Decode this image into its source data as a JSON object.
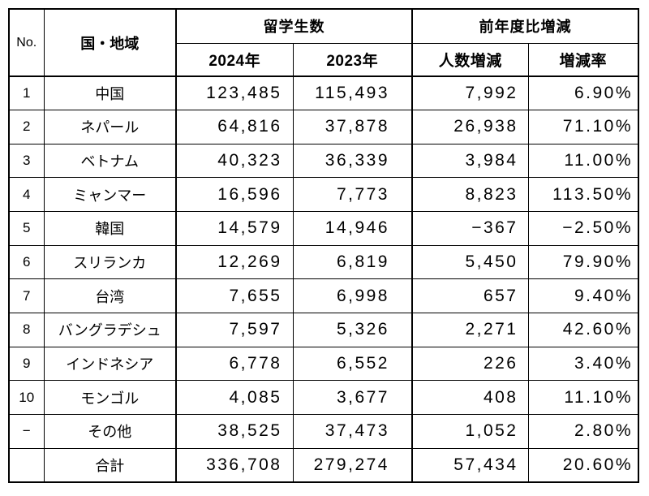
{
  "header": {
    "no": "No.",
    "country": "国・地域",
    "students_group": "留学生数",
    "yoy_group": "前年度比増減",
    "year_2024": "2024年",
    "year_2023": "2023年",
    "diff": "人数増減",
    "rate": "増減率"
  },
  "rows": [
    {
      "no": "1",
      "country": "中国",
      "y2024": "123,485",
      "y2023": "115,493",
      "diff": "7,992",
      "rate": "6.90%"
    },
    {
      "no": "2",
      "country": "ネパール",
      "y2024": "64,816",
      "y2023": "37,878",
      "diff": "26,938",
      "rate": "71.10%"
    },
    {
      "no": "3",
      "country": "ベトナム",
      "y2024": "40,323",
      "y2023": "36,339",
      "diff": "3,984",
      "rate": "11.00%"
    },
    {
      "no": "4",
      "country": "ミャンマー",
      "y2024": "16,596",
      "y2023": "7,773",
      "diff": "8,823",
      "rate": "113.50%"
    },
    {
      "no": "5",
      "country": "韓国",
      "y2024": "14,579",
      "y2023": "14,946",
      "diff": "−367",
      "rate": "−2.50%"
    },
    {
      "no": "6",
      "country": "スリランカ",
      "y2024": "12,269",
      "y2023": "6,819",
      "diff": "5,450",
      "rate": "79.90%"
    },
    {
      "no": "7",
      "country": "台湾",
      "y2024": "7,655",
      "y2023": "6,998",
      "diff": "657",
      "rate": "9.40%"
    },
    {
      "no": "8",
      "country": "バングラデシュ",
      "y2024": "7,597",
      "y2023": "5,326",
      "diff": "2,271",
      "rate": "42.60%"
    },
    {
      "no": "9",
      "country": "インドネシア",
      "y2024": "6,778",
      "y2023": "6,552",
      "diff": "226",
      "rate": "3.40%"
    },
    {
      "no": "10",
      "country": "モンゴル",
      "y2024": "4,085",
      "y2023": "3,677",
      "diff": "408",
      "rate": "11.10%"
    },
    {
      "no": "−",
      "country": "その他",
      "y2024": "38,525",
      "y2023": "37,473",
      "diff": "1,052",
      "rate": "2.80%"
    },
    {
      "no": "",
      "country": "合計",
      "y2024": "336,708",
      "y2023": "279,274",
      "diff": "57,434",
      "rate": "20.60%"
    }
  ],
  "colors": {
    "border": "#000000",
    "text": "#000000",
    "background": "#ffffff"
  }
}
